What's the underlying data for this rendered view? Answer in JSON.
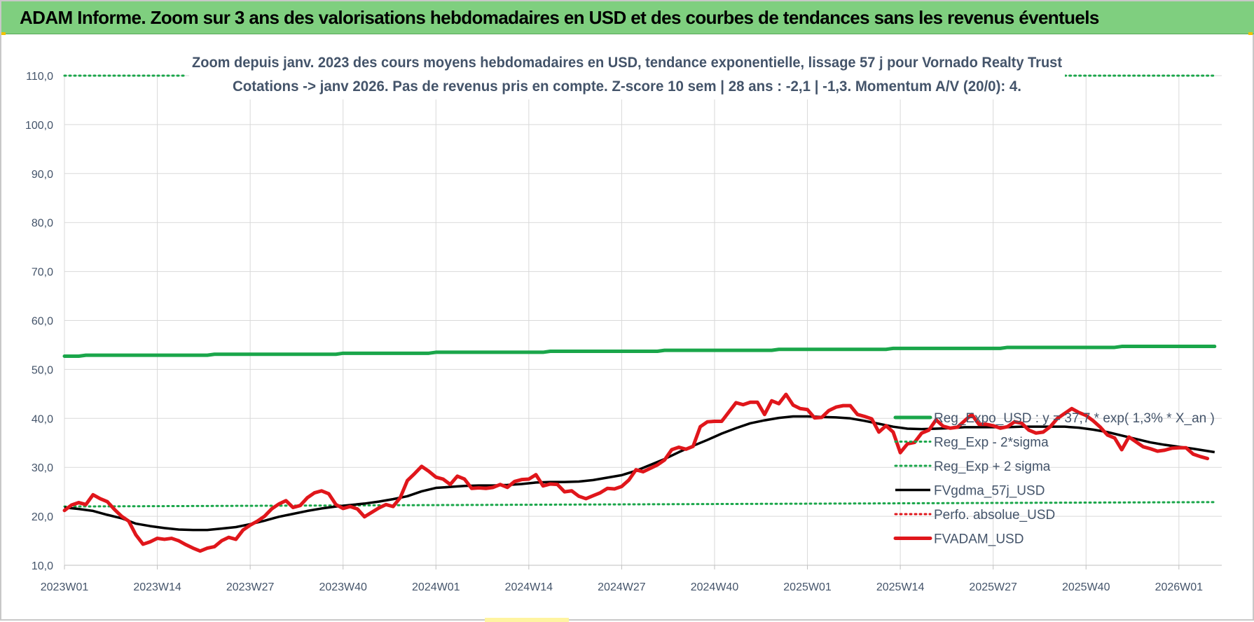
{
  "banner": {
    "title": "ADAM Informe. Zoom sur 3 ans des valorisations hebdomadaires en USD et des courbes de tendances sans les revenus éventuels"
  },
  "chart_data": {
    "type": "line",
    "title": "Zoom depuis janv. 2023 des cours moyens hebdomadaires en USD, tendance exponentielle, lissage 57 j pour Vornado Realty Trust",
    "subtitle": "Cotations -> janv 2026. Pas de revenus pris en compte. Z-score 10 sem | 28 ans : -2,1 | -1,3. Momentum A/V (20/0): 4.",
    "xlabel": "",
    "ylabel": "",
    "ylim": [
      10,
      110
    ],
    "yticks": [
      "10,0",
      "20,0",
      "30,0",
      "40,0",
      "50,0",
      "60,0",
      "70,0",
      "80,0",
      "90,0",
      "100,0",
      "110,0"
    ],
    "x_range": [
      0,
      162
    ],
    "x_ticks": [
      {
        "label": "2023W01",
        "x": 0
      },
      {
        "label": "2023W14",
        "x": 13
      },
      {
        "label": "2023W27",
        "x": 26
      },
      {
        "label": "2023W40",
        "x": 39
      },
      {
        "label": "2024W01",
        "x": 52
      },
      {
        "label": "2024W14",
        "x": 65
      },
      {
        "label": "2024W27",
        "x": 78
      },
      {
        "label": "2024W40",
        "x": 91
      },
      {
        "label": "2025W01",
        "x": 104
      },
      {
        "label": "2025W14",
        "x": 117
      },
      {
        "label": "2025W27",
        "x": 130
      },
      {
        "label": "2025W40",
        "x": 143
      },
      {
        "label": "2026W01",
        "x": 156
      }
    ],
    "grid": true,
    "legend_position": "right",
    "series": [
      {
        "name": "Reg_Expo_USD : y = 37,7 * exp( 1,3% * X_an )",
        "color": "#1aa64a",
        "style": "solid-thick",
        "points": [
          [
            0,
            52.7
          ],
          [
            2,
            52.7
          ],
          [
            3,
            52.9
          ],
          [
            20,
            52.9
          ],
          [
            21,
            53.1
          ],
          [
            38,
            53.1
          ],
          [
            39,
            53.3
          ],
          [
            51,
            53.3
          ],
          [
            52,
            53.5
          ],
          [
            67,
            53.5
          ],
          [
            68,
            53.7
          ],
          [
            83,
            53.7
          ],
          [
            84,
            53.9
          ],
          [
            99,
            53.9
          ],
          [
            100,
            54.1
          ],
          [
            115,
            54.1
          ],
          [
            116,
            54.3
          ],
          [
            131,
            54.3
          ],
          [
            132,
            54.5
          ],
          [
            147,
            54.5
          ],
          [
            148,
            54.7
          ],
          [
            161,
            54.7
          ]
        ]
      },
      {
        "name": "Reg_Exp - 2*sigma",
        "color": "#1aa64a",
        "style": "dotted",
        "points": [
          [
            0,
            22.0
          ],
          [
            161,
            22.9
          ]
        ]
      },
      {
        "name": "Reg_Exp + 2 sigma",
        "color": "#1aa64a",
        "style": "dotted",
        "points": [
          [
            0,
            110
          ],
          [
            17,
            110
          ],
          [
            140,
            110
          ],
          [
            161,
            110
          ]
        ],
        "segments": [
          [
            0,
            17
          ],
          [
            140,
            161
          ]
        ]
      },
      {
        "name": "FVgdma_57j_USD",
        "color": "#000000",
        "style": "solid",
        "points": [
          [
            0,
            21.8
          ],
          [
            2,
            21.5
          ],
          [
            4,
            21.1
          ],
          [
            6,
            20.3
          ],
          [
            8,
            19.6
          ],
          [
            10,
            18.5
          ],
          [
            12,
            18.0
          ],
          [
            14,
            17.6
          ],
          [
            16,
            17.3
          ],
          [
            18,
            17.2
          ],
          [
            20,
            17.2
          ],
          [
            22,
            17.5
          ],
          [
            24,
            17.8
          ],
          [
            26,
            18.4
          ],
          [
            28,
            19.1
          ],
          [
            30,
            19.9
          ],
          [
            32,
            20.5
          ],
          [
            34,
            21.1
          ],
          [
            36,
            21.6
          ],
          [
            38,
            22.0
          ],
          [
            40,
            22.3
          ],
          [
            42,
            22.6
          ],
          [
            44,
            23.0
          ],
          [
            46,
            23.5
          ],
          [
            48,
            24.1
          ],
          [
            50,
            25.1
          ],
          [
            52,
            25.8
          ],
          [
            54,
            26.0
          ],
          [
            56,
            26.2
          ],
          [
            58,
            26.3
          ],
          [
            60,
            26.3
          ],
          [
            62,
            26.4
          ],
          [
            64,
            26.6
          ],
          [
            66,
            26.9
          ],
          [
            68,
            27.0
          ],
          [
            70,
            27.0
          ],
          [
            72,
            27.1
          ],
          [
            74,
            27.4
          ],
          [
            76,
            27.9
          ],
          [
            78,
            28.4
          ],
          [
            80,
            29.3
          ],
          [
            82,
            30.5
          ],
          [
            84,
            31.7
          ],
          [
            86,
            33.1
          ],
          [
            88,
            34.4
          ],
          [
            90,
            35.6
          ],
          [
            92,
            36.9
          ],
          [
            94,
            38.0
          ],
          [
            96,
            39.0
          ],
          [
            98,
            39.6
          ],
          [
            100,
            40.1
          ],
          [
            102,
            40.4
          ],
          [
            104,
            40.4
          ],
          [
            106,
            40.3
          ],
          [
            108,
            40.2
          ],
          [
            110,
            40.0
          ],
          [
            112,
            39.5
          ],
          [
            114,
            38.9
          ],
          [
            116,
            38.3
          ],
          [
            118,
            37.9
          ],
          [
            120,
            37.8
          ],
          [
            122,
            37.9
          ],
          [
            124,
            38.0
          ],
          [
            126,
            38.2
          ],
          [
            128,
            38.2
          ],
          [
            130,
            38.2
          ],
          [
            132,
            38.2
          ],
          [
            134,
            38.3
          ],
          [
            136,
            38.3
          ],
          [
            138,
            38.3
          ],
          [
            140,
            38.3
          ],
          [
            142,
            38.1
          ],
          [
            144,
            37.7
          ],
          [
            146,
            37.2
          ],
          [
            148,
            36.5
          ],
          [
            150,
            35.8
          ],
          [
            152,
            35.1
          ],
          [
            154,
            34.6
          ],
          [
            156,
            34.2
          ],
          [
            158,
            33.8
          ],
          [
            161,
            33.1
          ]
        ]
      },
      {
        "name": "Perfo. absolue_USD",
        "color": "#e0161b",
        "style": "dotted",
        "points": []
      },
      {
        "name": "FVADAM_USD",
        "color": "#e0161b",
        "style": "solid-thick",
        "points": [
          [
            0,
            21.2
          ],
          [
            1,
            22.3
          ],
          [
            2,
            22.8
          ],
          [
            3,
            22.4
          ],
          [
            4,
            24.4
          ],
          [
            5,
            23.6
          ],
          [
            6,
            23.0
          ],
          [
            7,
            21.4
          ],
          [
            8,
            20.0
          ],
          [
            9,
            19.0
          ],
          [
            10,
            16.2
          ],
          [
            11,
            14.3
          ],
          [
            12,
            14.8
          ],
          [
            13,
            15.5
          ],
          [
            14,
            15.3
          ],
          [
            15,
            15.5
          ],
          [
            16,
            15.0
          ],
          [
            17,
            14.2
          ],
          [
            18,
            13.5
          ],
          [
            19,
            12.9
          ],
          [
            20,
            13.5
          ],
          [
            21,
            13.8
          ],
          [
            22,
            15.0
          ],
          [
            23,
            15.7
          ],
          [
            24,
            15.3
          ],
          [
            25,
            17.2
          ],
          [
            26,
            18.2
          ],
          [
            27,
            19.0
          ],
          [
            28,
            20.0
          ],
          [
            29,
            21.5
          ],
          [
            30,
            22.5
          ],
          [
            31,
            23.2
          ],
          [
            32,
            21.8
          ],
          [
            33,
            22.2
          ],
          [
            34,
            23.8
          ],
          [
            35,
            24.8
          ],
          [
            36,
            25.2
          ],
          [
            37,
            24.6
          ],
          [
            38,
            22.4
          ],
          [
            39,
            21.6
          ],
          [
            40,
            22.0
          ],
          [
            41,
            21.5
          ],
          [
            42,
            19.9
          ],
          [
            43,
            20.8
          ],
          [
            44,
            21.7
          ],
          [
            45,
            22.4
          ],
          [
            46,
            22.0
          ],
          [
            47,
            23.8
          ],
          [
            48,
            27.3
          ],
          [
            49,
            28.7
          ],
          [
            50,
            30.2
          ],
          [
            51,
            29.2
          ],
          [
            52,
            28.0
          ],
          [
            53,
            27.6
          ],
          [
            54,
            26.5
          ],
          [
            55,
            28.2
          ],
          [
            56,
            27.6
          ],
          [
            57,
            25.7
          ],
          [
            58,
            25.8
          ],
          [
            59,
            25.7
          ],
          [
            60,
            25.9
          ],
          [
            61,
            26.5
          ],
          [
            62,
            25.9
          ],
          [
            63,
            27.1
          ],
          [
            64,
            27.5
          ],
          [
            65,
            27.6
          ],
          [
            66,
            28.5
          ],
          [
            67,
            26.2
          ],
          [
            68,
            26.6
          ],
          [
            69,
            26.5
          ],
          [
            70,
            25.0
          ],
          [
            71,
            25.2
          ],
          [
            72,
            24.1
          ],
          [
            73,
            23.6
          ],
          [
            74,
            24.2
          ],
          [
            75,
            24.8
          ],
          [
            76,
            25.7
          ],
          [
            77,
            25.6
          ],
          [
            78,
            26.1
          ],
          [
            79,
            27.4
          ],
          [
            80,
            29.5
          ],
          [
            81,
            29.1
          ],
          [
            82,
            29.8
          ],
          [
            83,
            30.5
          ],
          [
            84,
            31.5
          ],
          [
            85,
            33.6
          ],
          [
            86,
            34.1
          ],
          [
            87,
            33.7
          ],
          [
            88,
            34.3
          ],
          [
            89,
            38.3
          ],
          [
            90,
            39.3
          ],
          [
            91,
            39.4
          ],
          [
            92,
            39.4
          ],
          [
            93,
            41.3
          ],
          [
            94,
            43.2
          ],
          [
            95,
            42.8
          ],
          [
            96,
            43.3
          ],
          [
            97,
            43.3
          ],
          [
            98,
            40.8
          ],
          [
            99,
            43.6
          ],
          [
            100,
            43.0
          ],
          [
            101,
            44.9
          ],
          [
            102,
            42.7
          ],
          [
            103,
            42.0
          ],
          [
            104,
            41.8
          ],
          [
            105,
            40.1
          ],
          [
            106,
            40.2
          ],
          [
            107,
            41.6
          ],
          [
            108,
            42.3
          ],
          [
            109,
            42.6
          ],
          [
            110,
            42.6
          ],
          [
            111,
            40.8
          ],
          [
            112,
            40.4
          ],
          [
            113,
            39.9
          ],
          [
            114,
            37.2
          ],
          [
            115,
            38.5
          ],
          [
            116,
            37.2
          ],
          [
            117,
            33.0
          ],
          [
            118,
            34.8
          ],
          [
            119,
            35.1
          ],
          [
            120,
            37.0
          ],
          [
            121,
            37.6
          ],
          [
            122,
            39.7
          ],
          [
            123,
            38.4
          ],
          [
            124,
            38.0
          ],
          [
            125,
            38.2
          ],
          [
            126,
            39.5
          ],
          [
            127,
            40.8
          ],
          [
            128,
            38.8
          ],
          [
            129,
            38.8
          ],
          [
            130,
            38.5
          ],
          [
            131,
            38.0
          ],
          [
            132,
            38.3
          ],
          [
            133,
            39.3
          ],
          [
            134,
            39.0
          ],
          [
            135,
            37.6
          ],
          [
            136,
            37.0
          ],
          [
            137,
            37.2
          ],
          [
            138,
            38.3
          ],
          [
            139,
            40.0
          ],
          [
            140,
            41.0
          ],
          [
            141,
            42.0
          ],
          [
            142,
            41.2
          ],
          [
            143,
            40.6
          ],
          [
            144,
            39.5
          ],
          [
            145,
            38.2
          ],
          [
            146,
            36.6
          ],
          [
            147,
            36.0
          ],
          [
            148,
            33.6
          ],
          [
            149,
            36.2
          ],
          [
            150,
            35.2
          ],
          [
            151,
            34.2
          ],
          [
            152,
            33.8
          ],
          [
            153,
            33.3
          ],
          [
            154,
            33.5
          ],
          [
            155,
            33.9
          ],
          [
            156,
            34.0
          ],
          [
            157,
            34.0
          ],
          [
            158,
            32.7
          ],
          [
            159,
            32.2
          ],
          [
            160,
            31.8
          ]
        ]
      }
    ]
  }
}
